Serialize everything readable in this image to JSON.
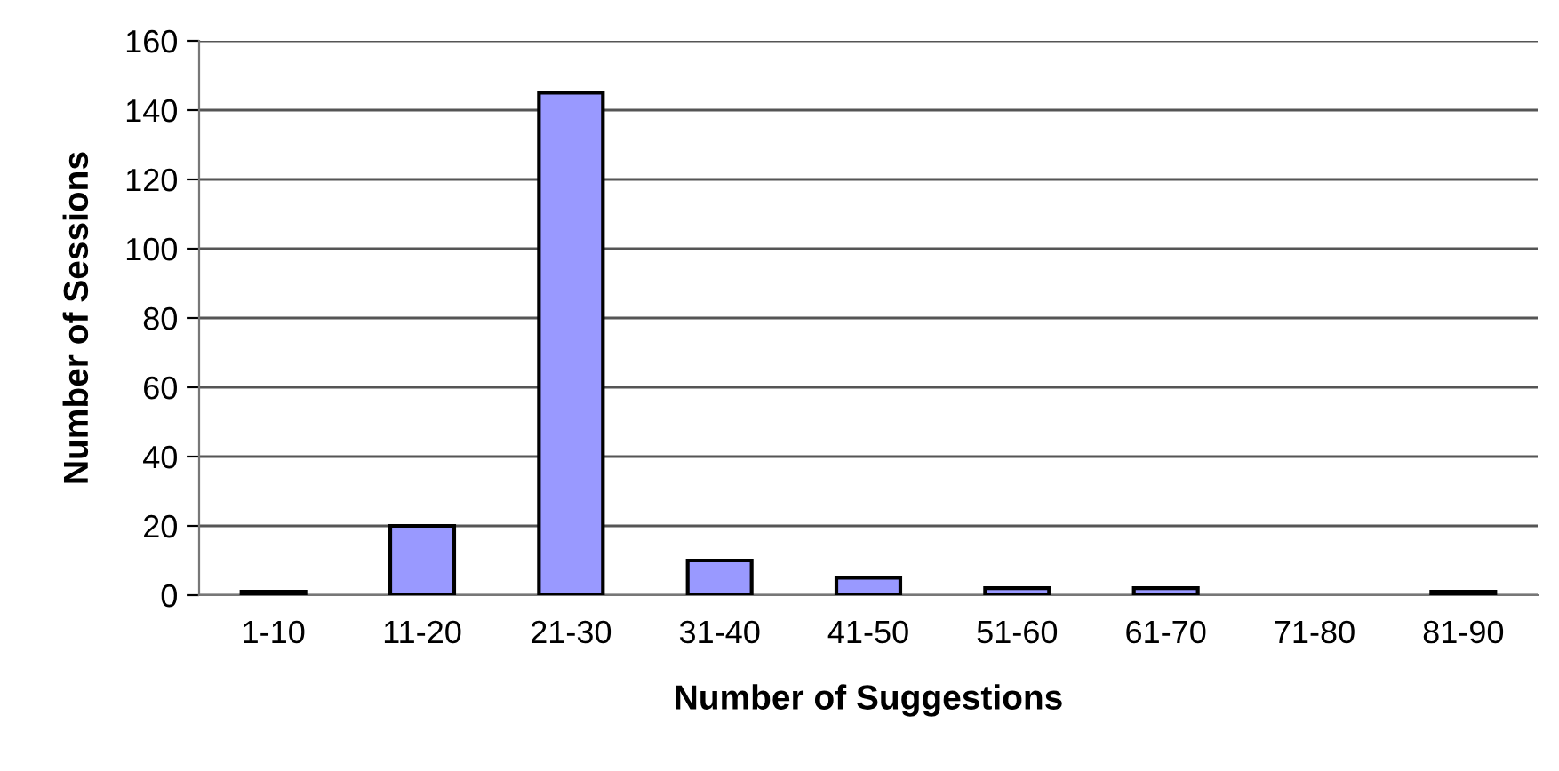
{
  "chart_data": {
    "type": "bar",
    "xlabel": "Number of Suggestions",
    "ylabel": "Number of Sessions",
    "categories": [
      "1-10",
      "11-20",
      "21-30",
      "31-40",
      "41-50",
      "51-60",
      "61-70",
      "71-80",
      "81-90"
    ],
    "values": [
      1,
      20,
      145,
      10,
      5,
      2,
      2,
      0,
      1
    ],
    "color": "#9999ff",
    "ylim": [
      0,
      160
    ],
    "yticks": [
      0,
      20,
      40,
      60,
      80,
      100,
      120,
      140,
      160
    ],
    "grid": "y",
    "legend": false
  }
}
